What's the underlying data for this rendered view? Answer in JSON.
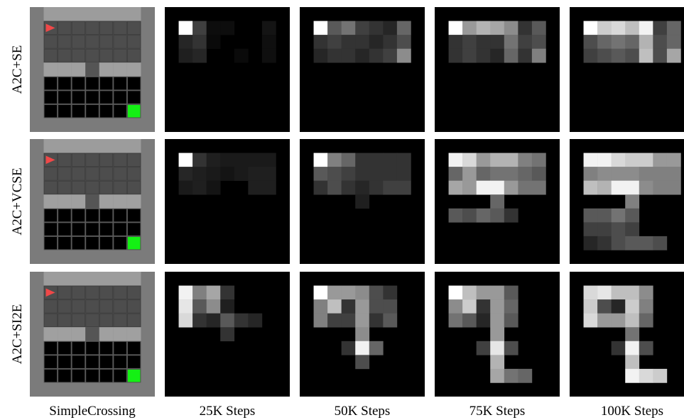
{
  "row_labels": [
    "A2C+SE",
    "A2C+VCSE",
    "A2C+SI2E"
  ],
  "column_labels": [
    "SimpleCrossing",
    "25K Steps",
    "50K Steps",
    "75K Steps",
    "100K Steps"
  ],
  "heatmaps": [
    [
      [
        [
          1,
          1,
          1
        ],
        [
          1,
          2,
          0.25
        ],
        [
          2,
          1,
          0.15
        ],
        [
          2,
          2,
          0.2
        ],
        [
          3,
          1,
          0.12
        ],
        [
          3,
          2,
          0.15
        ],
        [
          1,
          3,
          0.05
        ],
        [
          1,
          4,
          0.05
        ],
        [
          1,
          7,
          0.08
        ],
        [
          2,
          7,
          0.06
        ],
        [
          3,
          7,
          0.06
        ],
        [
          2,
          3,
          0.04
        ],
        [
          3,
          5,
          0.04
        ]
      ],
      [
        [
          1,
          1,
          1
        ],
        [
          1,
          2,
          0.35
        ],
        [
          1,
          3,
          0.45
        ],
        [
          1,
          4,
          0.25
        ],
        [
          1,
          5,
          0.2
        ],
        [
          1,
          6,
          0.15
        ],
        [
          1,
          7,
          0.4
        ],
        [
          2,
          1,
          0.2
        ],
        [
          2,
          2,
          0.25
        ],
        [
          2,
          3,
          0.2
        ],
        [
          2,
          4,
          0.2
        ],
        [
          2,
          5,
          0.15
        ],
        [
          2,
          6,
          0.2
        ],
        [
          2,
          7,
          0.3
        ],
        [
          3,
          1,
          0.15
        ],
        [
          3,
          2,
          0.2
        ],
        [
          3,
          3,
          0.2
        ],
        [
          3,
          4,
          0.15
        ],
        [
          3,
          5,
          0.2
        ],
        [
          3,
          6,
          0.25
        ],
        [
          3,
          7,
          0.55
        ]
      ],
      [
        [
          1,
          1,
          1
        ],
        [
          1,
          2,
          0.6
        ],
        [
          1,
          3,
          0.7
        ],
        [
          1,
          4,
          0.65
        ],
        [
          1,
          5,
          0.55
        ],
        [
          1,
          6,
          0.2
        ],
        [
          1,
          7,
          0.35
        ],
        [
          2,
          1,
          0.2
        ],
        [
          2,
          2,
          0.25
        ],
        [
          2,
          3,
          0.2
        ],
        [
          2,
          4,
          0.2
        ],
        [
          2,
          5,
          0.45
        ],
        [
          2,
          6,
          0.25
        ],
        [
          2,
          7,
          0.3
        ],
        [
          3,
          1,
          0.2
        ],
        [
          3,
          2,
          0.25
        ],
        [
          3,
          3,
          0.2
        ],
        [
          3,
          4,
          0.15
        ],
        [
          3,
          5,
          0.4
        ],
        [
          3,
          6,
          0.2
        ],
        [
          3,
          7,
          0.5
        ]
      ],
      [
        [
          1,
          1,
          1
        ],
        [
          1,
          2,
          0.8
        ],
        [
          1,
          3,
          0.85
        ],
        [
          1,
          4,
          0.75
        ],
        [
          1,
          5,
          0.95
        ],
        [
          1,
          6,
          0.25
        ],
        [
          1,
          7,
          0.4
        ],
        [
          2,
          1,
          0.3
        ],
        [
          2,
          2,
          0.4
        ],
        [
          2,
          3,
          0.45
        ],
        [
          2,
          4,
          0.4
        ],
        [
          2,
          5,
          0.7
        ],
        [
          2,
          6,
          0.3
        ],
        [
          2,
          7,
          0.4
        ],
        [
          3,
          1,
          0.25
        ],
        [
          3,
          2,
          0.3
        ],
        [
          3,
          3,
          0.35
        ],
        [
          3,
          4,
          0.3
        ],
        [
          3,
          5,
          0.75
        ],
        [
          3,
          6,
          0.3
        ],
        [
          3,
          7,
          0.65
        ]
      ]
    ],
    [
      [
        [
          1,
          1,
          1
        ],
        [
          1,
          2,
          0.2
        ],
        [
          1,
          3,
          0.12
        ],
        [
          1,
          4,
          0.1
        ],
        [
          1,
          5,
          0.1
        ],
        [
          1,
          6,
          0.1
        ],
        [
          1,
          7,
          0.1
        ],
        [
          2,
          1,
          0.15
        ],
        [
          2,
          2,
          0.12
        ],
        [
          2,
          3,
          0.1
        ],
        [
          2,
          4,
          0.08
        ],
        [
          2,
          5,
          0.1
        ],
        [
          2,
          6,
          0.12
        ],
        [
          2,
          7,
          0.12
        ],
        [
          3,
          1,
          0.1
        ],
        [
          3,
          2,
          0.12
        ],
        [
          3,
          3,
          0.08
        ],
        [
          3,
          6,
          0.12
        ],
        [
          3,
          7,
          0.12
        ]
      ],
      [
        [
          1,
          1,
          1
        ],
        [
          1,
          2,
          0.5
        ],
        [
          1,
          3,
          0.4
        ],
        [
          1,
          4,
          0.2
        ],
        [
          1,
          5,
          0.2
        ],
        [
          1,
          6,
          0.2
        ],
        [
          1,
          7,
          0.2
        ],
        [
          2,
          1,
          0.35
        ],
        [
          2,
          2,
          0.3
        ],
        [
          2,
          3,
          0.25
        ],
        [
          2,
          4,
          0.2
        ],
        [
          2,
          5,
          0.2
        ],
        [
          2,
          6,
          0.2
        ],
        [
          2,
          7,
          0.2
        ],
        [
          3,
          1,
          0.2
        ],
        [
          3,
          2,
          0.3
        ],
        [
          3,
          3,
          0.2
        ],
        [
          3,
          4,
          0.15
        ],
        [
          3,
          5,
          0.2
        ],
        [
          3,
          6,
          0.25
        ],
        [
          3,
          7,
          0.25
        ],
        [
          4,
          4,
          0.12
        ]
      ],
      [
        [
          1,
          1,
          0.95
        ],
        [
          1,
          2,
          0.85
        ],
        [
          1,
          3,
          0.6
        ],
        [
          1,
          4,
          0.7
        ],
        [
          1,
          5,
          0.7
        ],
        [
          1,
          6,
          0.5
        ],
        [
          1,
          7,
          0.45
        ],
        [
          2,
          1,
          0.4
        ],
        [
          2,
          2,
          0.6
        ],
        [
          2,
          3,
          0.4
        ],
        [
          2,
          4,
          0.45
        ],
        [
          2,
          5,
          0.45
        ],
        [
          2,
          6,
          0.4
        ],
        [
          2,
          7,
          0.35
        ],
        [
          3,
          1,
          0.65
        ],
        [
          3,
          2,
          0.6
        ],
        [
          3,
          3,
          0.95
        ],
        [
          3,
          4,
          0.95
        ],
        [
          3,
          5,
          0.6
        ],
        [
          3,
          6,
          0.45
        ],
        [
          3,
          7,
          0.45
        ],
        [
          4,
          4,
          0.4
        ],
        [
          5,
          1,
          0.35
        ],
        [
          5,
          2,
          0.3
        ],
        [
          5,
          3,
          0.4
        ],
        [
          5,
          4,
          0.35
        ],
        [
          5,
          5,
          0.2
        ]
      ],
      [
        [
          1,
          1,
          0.95
        ],
        [
          1,
          2,
          0.95
        ],
        [
          1,
          3,
          0.85
        ],
        [
          1,
          4,
          0.8
        ],
        [
          1,
          5,
          0.8
        ],
        [
          1,
          6,
          0.6
        ],
        [
          1,
          7,
          0.6
        ],
        [
          2,
          1,
          0.5
        ],
        [
          2,
          2,
          0.55
        ],
        [
          2,
          3,
          0.55
        ],
        [
          2,
          4,
          0.55
        ],
        [
          2,
          5,
          0.5
        ],
        [
          2,
          6,
          0.5
        ],
        [
          2,
          7,
          0.5
        ],
        [
          3,
          1,
          0.75
        ],
        [
          3,
          2,
          0.7
        ],
        [
          3,
          3,
          0.95
        ],
        [
          3,
          4,
          0.95
        ],
        [
          3,
          5,
          0.55
        ],
        [
          3,
          6,
          0.5
        ],
        [
          3,
          7,
          0.5
        ],
        [
          4,
          4,
          0.5
        ],
        [
          5,
          1,
          0.35
        ],
        [
          5,
          2,
          0.35
        ],
        [
          5,
          3,
          0.45
        ],
        [
          5,
          4,
          0.35
        ],
        [
          6,
          1,
          0.25
        ],
        [
          6,
          2,
          0.25
        ],
        [
          6,
          3,
          0.3
        ],
        [
          6,
          4,
          0.25
        ],
        [
          7,
          1,
          0.15
        ],
        [
          7,
          2,
          0.2
        ],
        [
          7,
          3,
          0.3
        ],
        [
          7,
          4,
          0.35
        ],
        [
          7,
          5,
          0.35
        ],
        [
          7,
          6,
          0.3
        ]
      ]
    ],
    [
      [
        [
          1,
          1,
          0.95
        ],
        [
          1,
          2,
          0.5
        ],
        [
          1,
          3,
          0.65
        ],
        [
          1,
          4,
          0.2
        ],
        [
          2,
          1,
          0.9
        ],
        [
          2,
          2,
          0.35
        ],
        [
          2,
          3,
          0.55
        ],
        [
          2,
          4,
          0.12
        ],
        [
          3,
          1,
          0.85
        ],
        [
          3,
          2,
          0.2
        ],
        [
          3,
          3,
          0.15
        ],
        [
          3,
          4,
          0.35
        ],
        [
          3,
          5,
          0.2
        ],
        [
          3,
          6,
          0.15
        ],
        [
          4,
          4,
          0.2
        ]
      ],
      [
        [
          1,
          1,
          1
        ],
        [
          1,
          2,
          0.6
        ],
        [
          1,
          3,
          0.6
        ],
        [
          1,
          4,
          0.55
        ],
        [
          1,
          5,
          0.3
        ],
        [
          1,
          6,
          0.2
        ],
        [
          2,
          1,
          0.5
        ],
        [
          2,
          2,
          0.75
        ],
        [
          2,
          3,
          0.2
        ],
        [
          2,
          4,
          0.6
        ],
        [
          2,
          5,
          0.3
        ],
        [
          2,
          6,
          0.3
        ],
        [
          3,
          1,
          0.5
        ],
        [
          3,
          2,
          0.25
        ],
        [
          3,
          3,
          0.25
        ],
        [
          3,
          4,
          0.6
        ],
        [
          3,
          5,
          0.2
        ],
        [
          3,
          6,
          0.35
        ],
        [
          4,
          4,
          0.55
        ],
        [
          5,
          3,
          0.2
        ],
        [
          5,
          4,
          0.95
        ],
        [
          5,
          5,
          0.4
        ],
        [
          6,
          4,
          0.3
        ]
      ],
      [
        [
          1,
          1,
          1
        ],
        [
          1,
          2,
          0.75
        ],
        [
          1,
          3,
          0.6
        ],
        [
          1,
          4,
          0.6
        ],
        [
          1,
          5,
          0.35
        ],
        [
          2,
          1,
          0.55
        ],
        [
          2,
          2,
          0.8
        ],
        [
          2,
          3,
          0.2
        ],
        [
          2,
          4,
          0.6
        ],
        [
          2,
          5,
          0.4
        ],
        [
          3,
          1,
          0.45
        ],
        [
          3,
          2,
          0.35
        ],
        [
          3,
          3,
          0.15
        ],
        [
          3,
          4,
          0.6
        ],
        [
          3,
          5,
          0.35
        ],
        [
          4,
          4,
          0.6
        ],
        [
          5,
          3,
          0.25
        ],
        [
          5,
          4,
          0.9
        ],
        [
          5,
          5,
          0.3
        ],
        [
          6,
          4,
          0.7
        ],
        [
          7,
          4,
          0.65
        ],
        [
          7,
          5,
          0.45
        ],
        [
          7,
          6,
          0.4
        ]
      ],
      [
        [
          1,
          1,
          0.85
        ],
        [
          1,
          2,
          0.9
        ],
        [
          1,
          3,
          0.75
        ],
        [
          1,
          4,
          0.75
        ],
        [
          1,
          5,
          0.55
        ],
        [
          2,
          1,
          0.8
        ],
        [
          2,
          2,
          0.3
        ],
        [
          2,
          3,
          0.15
        ],
        [
          2,
          4,
          0.8
        ],
        [
          2,
          5,
          0.5
        ],
        [
          3,
          1,
          0.85
        ],
        [
          3,
          2,
          0.6
        ],
        [
          3,
          3,
          0.6
        ],
        [
          3,
          4,
          0.75
        ],
        [
          3,
          5,
          0.4
        ],
        [
          4,
          4,
          0.45
        ],
        [
          5,
          3,
          0.2
        ],
        [
          5,
          4,
          0.95
        ],
        [
          5,
          5,
          0.3
        ],
        [
          6,
          4,
          0.75
        ],
        [
          7,
          4,
          0.95
        ],
        [
          7,
          5,
          0.85
        ],
        [
          7,
          6,
          0.8
        ]
      ]
    ]
  ]
}
